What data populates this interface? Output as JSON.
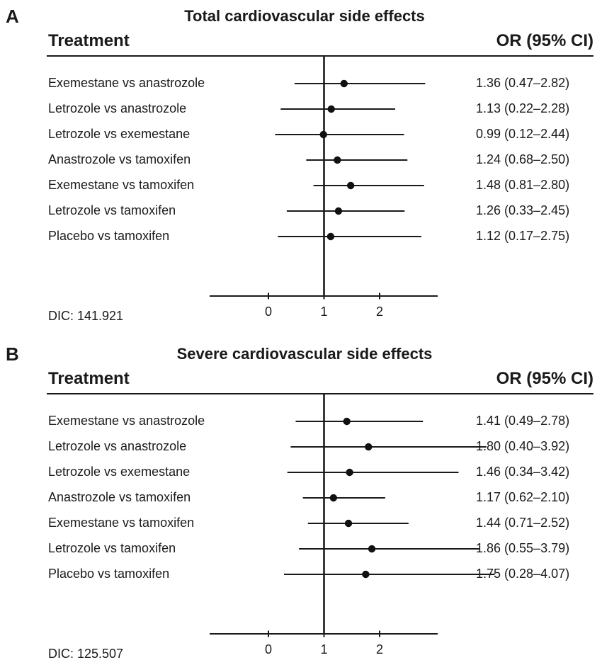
{
  "chart_data": [
    {
      "type": "forest",
      "panel_label": "A",
      "title": "Total cardiovascular side effects",
      "column_left": "Treatment",
      "column_right": "OR (95% CI)",
      "reference_line": 1,
      "xlim": [
        -1,
        3.1
      ],
      "x_ticks": [
        0,
        1,
        2
      ],
      "rows": [
        {
          "label": "Exemestane vs anastrozole",
          "or": 1.36,
          "lo": 0.47,
          "hi": 2.82,
          "text": "1.36 (0.47–2.82)"
        },
        {
          "label": "Letrozole vs anastrozole",
          "or": 1.13,
          "lo": 0.22,
          "hi": 2.28,
          "text": "1.13 (0.22–2.28)"
        },
        {
          "label": "Letrozole vs exemestane",
          "or": 0.99,
          "lo": 0.12,
          "hi": 2.44,
          "text": "0.99 (0.12–2.44)"
        },
        {
          "label": "Anastrozole vs tamoxifen",
          "or": 1.24,
          "lo": 0.68,
          "hi": 2.5,
          "text": "1.24 (0.68–2.50)"
        },
        {
          "label": "Exemestane vs tamoxifen",
          "or": 1.48,
          "lo": 0.81,
          "hi": 2.8,
          "text": "1.48 (0.81–2.80)"
        },
        {
          "label": "Letrozole vs tamoxifen",
          "or": 1.26,
          "lo": 0.33,
          "hi": 2.45,
          "text": "1.26 (0.33–2.45)"
        },
        {
          "label": "Placebo vs tamoxifen",
          "or": 1.12,
          "lo": 0.17,
          "hi": 2.75,
          "text": "1.12 (0.17–2.75)"
        }
      ],
      "footnote": "DIC: 141.921"
    },
    {
      "type": "forest",
      "panel_label": "B",
      "title": "Severe cardiovascular side effects",
      "column_left": "Treatment",
      "column_right": "OR (95% CI)",
      "reference_line": 1,
      "xlim": [
        -1,
        3.1
      ],
      "x_ticks": [
        0,
        1,
        2
      ],
      "rows": [
        {
          "label": "Exemestane vs anastrozole",
          "or": 1.41,
          "lo": 0.49,
          "hi": 2.78,
          "text": "1.41 (0.49–2.78)"
        },
        {
          "label": "Letrozole vs anastrozole",
          "or": 1.8,
          "lo": 0.4,
          "hi": 3.92,
          "text": "1.80 (0.40–3.92)"
        },
        {
          "label": "Letrozole vs exemestane",
          "or": 1.46,
          "lo": 0.34,
          "hi": 3.42,
          "text": "1.46 (0.34–3.42)"
        },
        {
          "label": "Anastrozole vs tamoxifen",
          "or": 1.17,
          "lo": 0.62,
          "hi": 2.1,
          "text": "1.17 (0.62–2.10)"
        },
        {
          "label": "Exemestane vs tamoxifen",
          "or": 1.44,
          "lo": 0.71,
          "hi": 2.52,
          "text": "1.44 (0.71–2.52)"
        },
        {
          "label": "Letrozole vs tamoxifen",
          "or": 1.86,
          "lo": 0.55,
          "hi": 3.79,
          "text": "1.86 (0.55–3.79)"
        },
        {
          "label": "Placebo vs tamoxifen",
          "or": 1.75,
          "lo": 0.28,
          "hi": 4.07,
          "text": "1.75 (0.28–4.07)"
        }
      ],
      "footnote": "DIC: 125.507"
    }
  ]
}
